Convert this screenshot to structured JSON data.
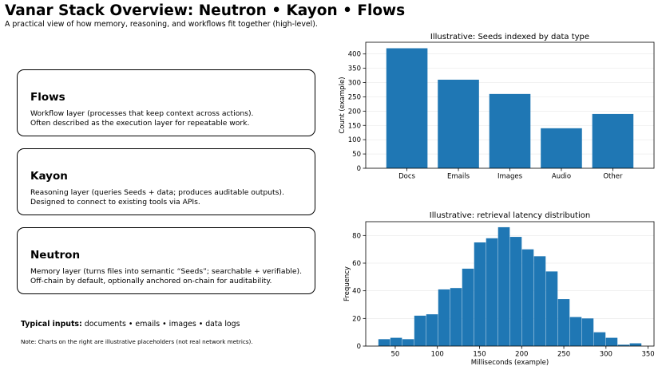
{
  "header": {
    "title": "Vanar Stack Overview: Neutron • Kayon • Flows",
    "subtitle": "A practical view of how memory, reasoning, and workflows fit together (high-level)."
  },
  "layers": [
    {
      "name": "Flows",
      "line1": "Workflow layer (processes that keep context across actions).",
      "line2": "Often described as the execution layer for repeatable work."
    },
    {
      "name": "Kayon",
      "line1": "Reasoning layer (queries Seeds + data; produces auditable outputs).",
      "line2": "Designed to connect to existing tools via APIs."
    },
    {
      "name": "Neutron",
      "line1": "Memory layer (turns files into semantic “Seeds”; searchable + verifiable).",
      "line2": "Off-chain by default, optionally anchored on-chain for auditability."
    }
  ],
  "footer": {
    "inputs_label": "Typical inputs:",
    "inputs_text": " documents • emails • images • data logs",
    "note": "Note: Charts on the right are illustrative placeholders (not real network metrics)."
  },
  "colors": {
    "bar": "#1f77b4",
    "grid": "#b0b0b0",
    "axis": "#000000"
  },
  "chart_data": [
    {
      "type": "bar",
      "title": "Illustrative: Seeds indexed by data type",
      "xlabel": "",
      "ylabel": "Count (example)",
      "categories": [
        "Docs",
        "Emails",
        "Images",
        "Audio",
        "Other"
      ],
      "values": [
        420,
        310,
        260,
        140,
        190
      ],
      "ylim": [
        0,
        441
      ],
      "yticks": [
        0,
        50,
        100,
        150,
        200,
        250,
        300,
        350,
        400
      ],
      "grid": "y"
    },
    {
      "type": "bar",
      "title": "Illustrative: retrieval latency distribution",
      "xlabel": "Milliseconds (example)",
      "ylabel": "Frequency",
      "bin_edges": [
        30,
        44.2,
        58.4,
        72.6,
        86.8,
        101,
        115.2,
        129.4,
        143.6,
        157.8,
        172,
        186.2,
        200.4,
        214.6,
        228.8,
        243,
        257.2,
        271.4,
        285.6,
        299.8,
        314,
        328.2,
        342.4
      ],
      "values": [
        5,
        6,
        5,
        22,
        23,
        41,
        42,
        56,
        75,
        78,
        86,
        79,
        70,
        65,
        54,
        34,
        21,
        20,
        10,
        6,
        1,
        2
      ],
      "xlim": [
        15,
        357
      ],
      "ylim": [
        0,
        90
      ],
      "xticks": [
        50,
        100,
        150,
        200,
        250,
        300,
        350
      ],
      "yticks": [
        0,
        20,
        40,
        60,
        80
      ],
      "grid": "y"
    }
  ]
}
